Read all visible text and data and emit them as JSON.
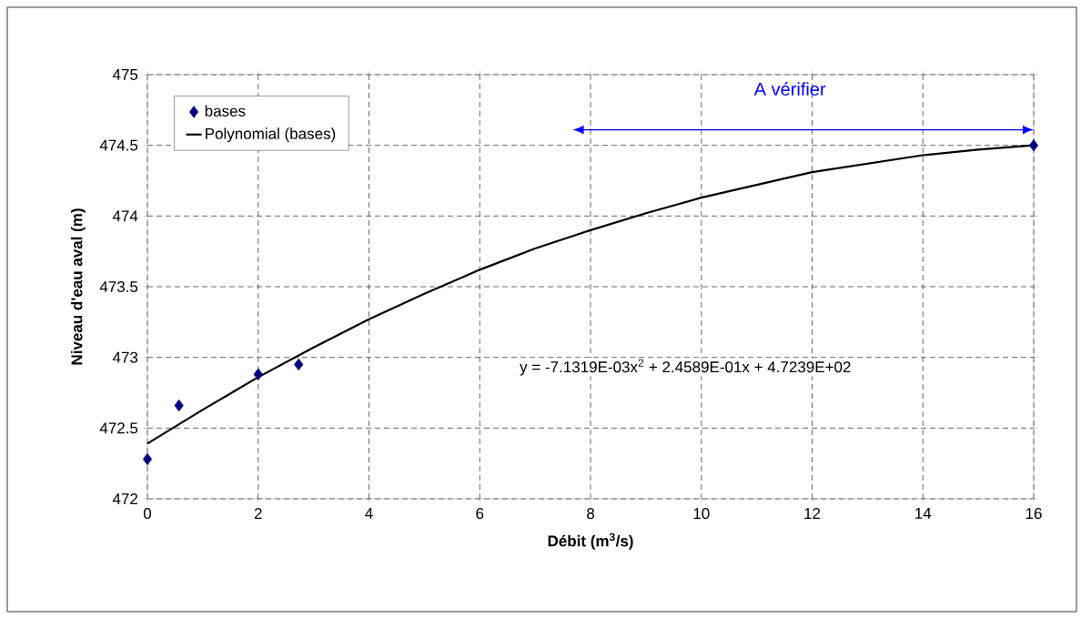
{
  "chart_data": {
    "type": "scatter",
    "xlabel": "Débit (m$^{3}$/s)",
    "ylabel": "Niveau d'eau aval (m)",
    "xlim": [
      0,
      16
    ],
    "xticks": [
      0,
      2,
      4,
      6,
      8,
      10,
      12,
      14,
      16
    ],
    "ylim": [
      472,
      475
    ],
    "yticks": [
      472,
      {
        "value": 472.5,
        "label": "472.5"
      },
      473,
      {
        "value": 473.5,
        "label": "473.5"
      },
      474,
      {
        "value": 474.5,
        "label": "474.5"
      },
      475
    ],
    "grid": true,
    "legend": "top left",
    "marker": "diamond",
    "series": [
      {
        "name": "bases",
        "color": "#000080",
        "x": [
          0,
          0.57,
          2,
          2.73,
          16
        ],
        "values": [
          472.28,
          472.66,
          472.88,
          472.95,
          474.5
        ]
      },
      {
        "name": "Polynomial (bases)",
        "type": "line",
        "color": "#000000",
        "marker": "none",
        "line_style": "solid",
        "x": [
          0,
          1,
          2,
          3,
          4,
          5,
          6,
          7,
          8,
          9,
          10,
          11,
          12,
          13,
          14,
          15,
          16
        ],
        "values": [
          472.39,
          472.63,
          472.86,
          473.07,
          473.27,
          473.45,
          473.62,
          473.77,
          473.9,
          474.02,
          474.13,
          474.22,
          474.31,
          474.37,
          474.43,
          474.47,
          474.5
        ]
      }
    ],
    "annotations": [
      "A vérifier",
      "y = -7.1319E-03x$^{2}$ + 2.4589E-01x + 4.7239E+02"
    ]
  }
}
